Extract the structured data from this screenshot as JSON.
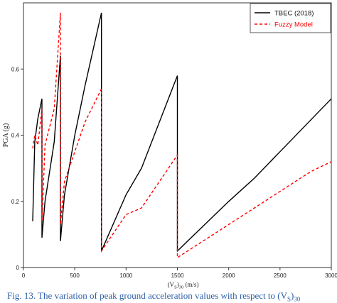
{
  "chart_data": {
    "type": "line",
    "xlabel": "(V",
    "xlabel_sub": "S",
    "xlabel_rest": ")",
    "xlabel_sub2": "30",
    "xlabel_units": " (m/s)",
    "ylabel": "PGA (g)",
    "xlim": [
      0,
      3000
    ],
    "ylim": [
      0,
      0.8
    ],
    "xticks": [
      0,
      500,
      1000,
      1500,
      2000,
      2500,
      3000
    ],
    "xtick_labels": [
      "0",
      "500",
      "1000",
      "1500",
      "2000",
      "2500",
      "3000"
    ],
    "yticks": [
      0,
      0.2,
      0.4,
      0.6
    ],
    "ytick_labels": [
      "0",
      "0.2",
      "0.4",
      "0.6"
    ],
    "grid": false,
    "legend_position": "top-right",
    "series": [
      {
        "name": "TBEC (2018)",
        "color": "#000000",
        "style": "solid",
        "x": [
          90,
          110,
          140,
          180,
          180,
          210,
          300,
          360,
          360,
          400,
          500,
          600,
          760,
          760,
          1000,
          1150,
          1500,
          1500,
          2000,
          2250,
          2500,
          3000
        ],
        "y": [
          0.14,
          0.38,
          0.45,
          0.51,
          0.09,
          0.2,
          0.38,
          0.64,
          0.08,
          0.22,
          0.4,
          0.55,
          0.77,
          0.05,
          0.22,
          0.3,
          0.58,
          0.05,
          0.2,
          0.27,
          0.35,
          0.51
        ]
      },
      {
        "name": "Fuzzy Model",
        "color": "#ff0000",
        "style": "dashed",
        "x": [
          90,
          110,
          140,
          180,
          180,
          210,
          300,
          360,
          360,
          400,
          500,
          600,
          760,
          760,
          1000,
          1150,
          1500,
          1500,
          2000,
          2250,
          2500,
          2800,
          3000
        ],
        "y": [
          0.36,
          0.4,
          0.37,
          0.48,
          0.14,
          0.37,
          0.48,
          0.77,
          0.13,
          0.26,
          0.35,
          0.44,
          0.54,
          0.05,
          0.16,
          0.18,
          0.34,
          0.03,
          0.13,
          0.18,
          0.23,
          0.29,
          0.32
        ]
      }
    ]
  },
  "caption": "Fig. 13. The variation of peak ground acceleration values with respect to (V"
}
